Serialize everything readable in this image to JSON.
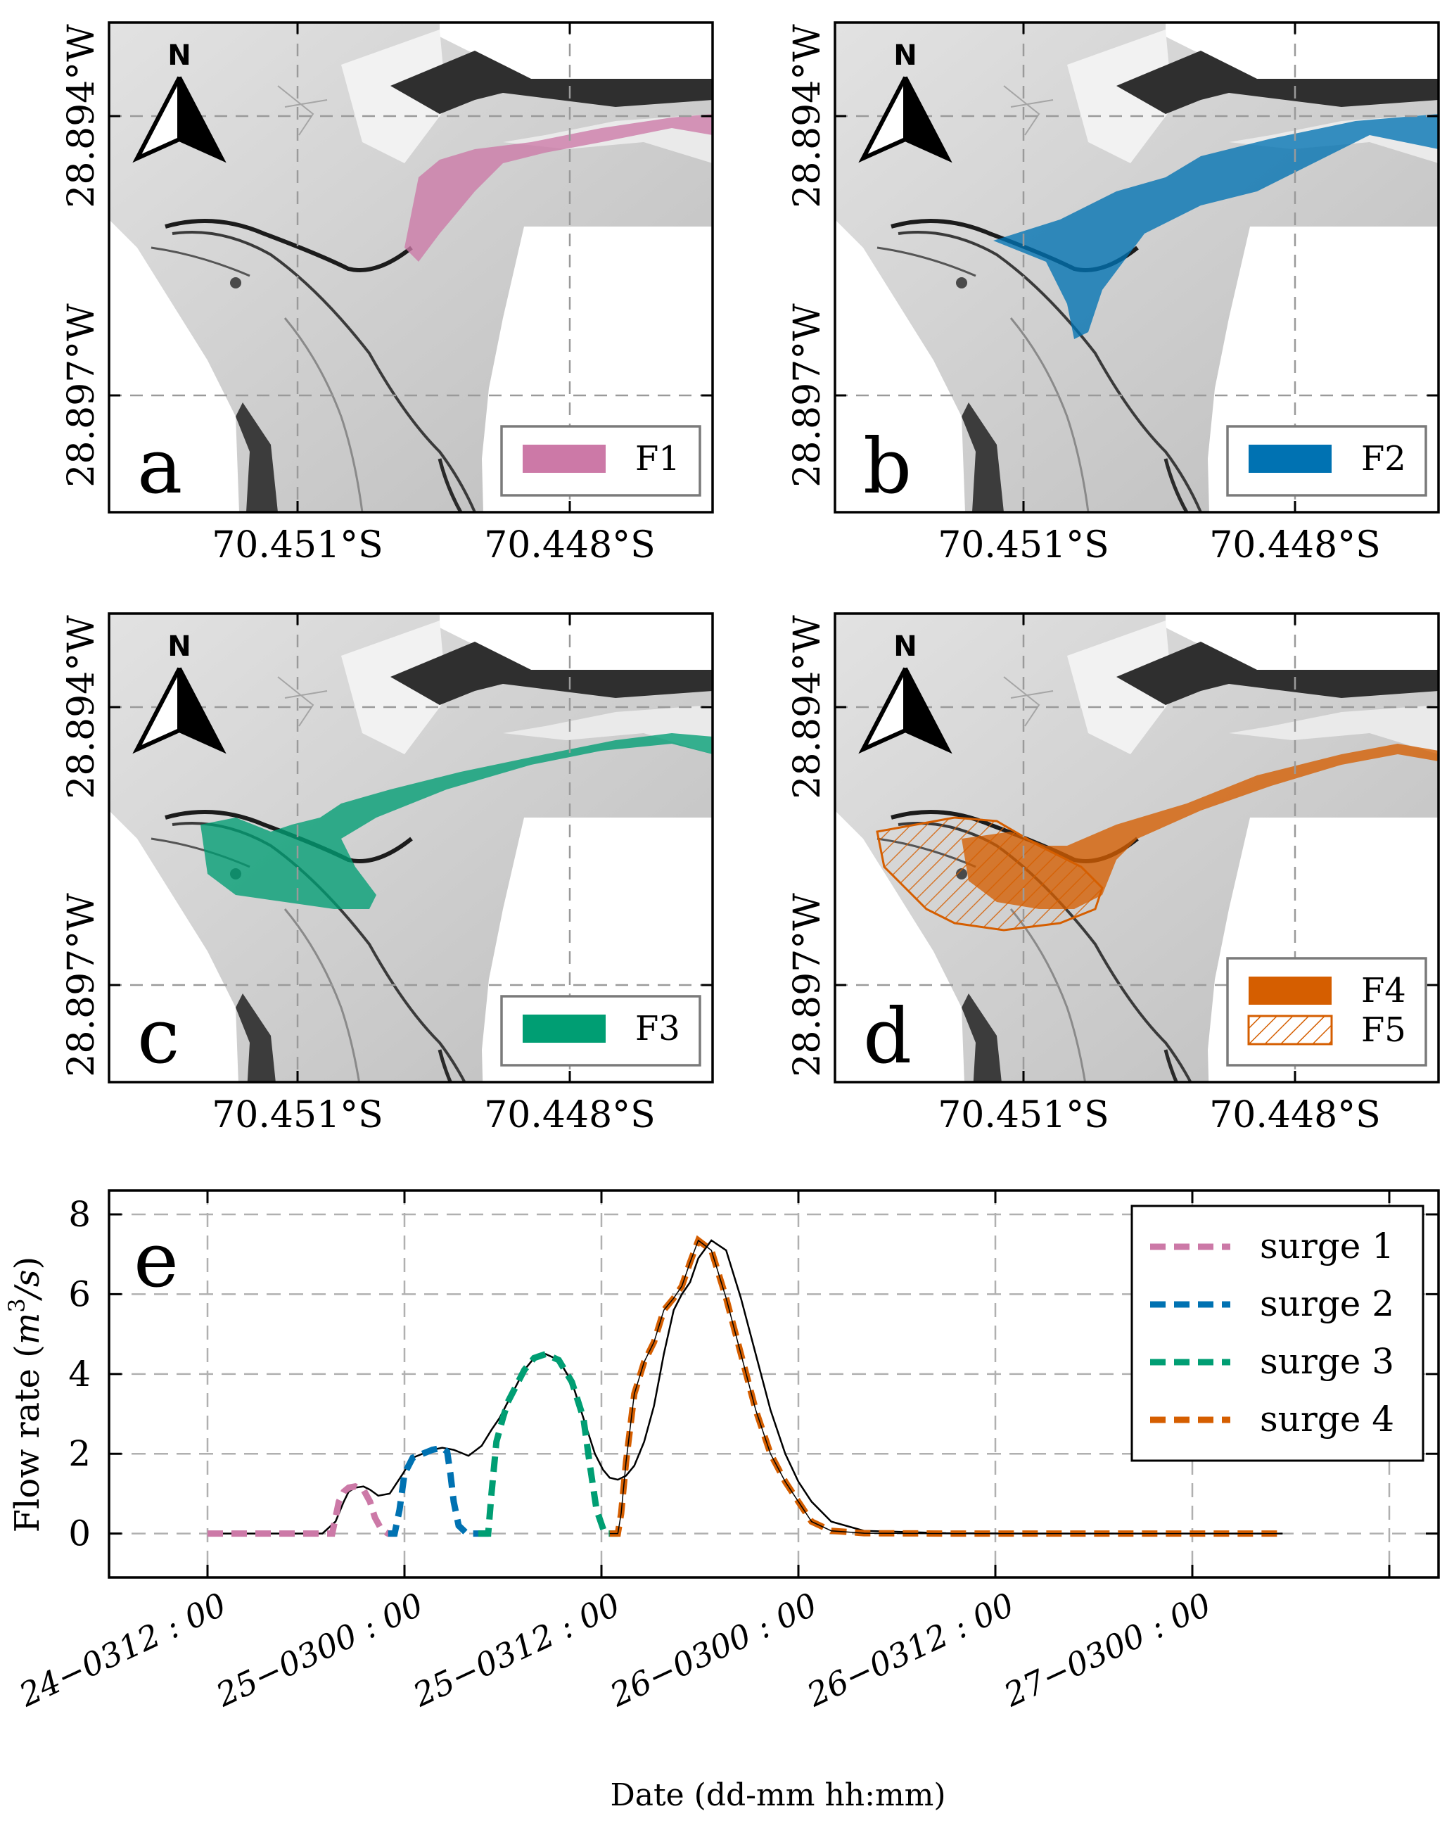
{
  "colors": {
    "f1": "#cc79a7",
    "f2": "#0072b2",
    "f3": "#009e73",
    "f4": "#d55e00",
    "total": "#000000",
    "grid": "#b0b0b0",
    "hillshade_light": "#ececec",
    "hillshade_mid": "#c8c8c8",
    "hillshade_dark": "#3a3a3a"
  },
  "maps": [
    {
      "panel_label": "a",
      "x_ticks": [
        "70.451°S",
        "70.448°S"
      ],
      "y_ticks": [
        "28.894°W",
        "28.897°W"
      ],
      "north_label": "N",
      "legend": [
        {
          "label": "F1",
          "color": "#cc79a7",
          "style": "solid"
        }
      ]
    },
    {
      "panel_label": "b",
      "x_ticks": [
        "70.451°S",
        "70.448°S"
      ],
      "y_ticks": [
        "28.894°W",
        "28.897°W"
      ],
      "north_label": "N",
      "legend": [
        {
          "label": "F2",
          "color": "#0072b2",
          "style": "solid"
        }
      ]
    },
    {
      "panel_label": "c",
      "x_ticks": [
        "70.451°S",
        "70.448°S"
      ],
      "y_ticks": [
        "28.894°W",
        "28.897°W"
      ],
      "north_label": "N",
      "legend": [
        {
          "label": "F3",
          "color": "#009e73",
          "style": "solid"
        }
      ]
    },
    {
      "panel_label": "d",
      "x_ticks": [
        "70.451°S",
        "70.448°S"
      ],
      "y_ticks": [
        "28.894°W",
        "28.897°W"
      ],
      "north_label": "N",
      "legend": [
        {
          "label": "F4",
          "color": "#d55e00",
          "style": "solid"
        },
        {
          "label": "F5",
          "color": "#d55e00",
          "style": "hatch"
        }
      ]
    }
  ],
  "chart_data": {
    "type": "line",
    "panel_label": "e",
    "title": "",
    "xlabel": "Date (dd-mm hh:mm)",
    "ylabel": "Flow rate (m³/s)",
    "ylabel_prefix": "Flow rate (",
    "ylabel_unit_base": "m",
    "ylabel_unit_exp": "3",
    "ylabel_unit_tail": "/s",
    "ylabel_suffix": ")",
    "xlim_hours": [
      -6,
      75
    ],
    "ylim": [
      -1.1,
      8.6
    ],
    "x_ticks_hours": [
      0,
      12,
      24,
      36,
      48,
      60,
      72
    ],
    "x_tick_labels": [
      "24−0312 : 00",
      "25−0300 : 00",
      "25−0312 : 00",
      "26−0300 : 00",
      "26−0312 : 00",
      "27−0300 : 00"
    ],
    "x_tick_label_hours": [
      0,
      12,
      24,
      36,
      48,
      60
    ],
    "y_ticks": [
      0,
      2,
      4,
      6,
      8
    ],
    "grid": true,
    "legend_position": "top-right",
    "series": [
      {
        "name": "total",
        "legend": false,
        "style": "solid-thin",
        "color": "#000000",
        "x": [
          0,
          7,
          7.8,
          8.3,
          8.6,
          9.0,
          9.5,
          9.9,
          10.4,
          11.1,
          11.9,
          12.5,
          13.1,
          13.7,
          14.3,
          15.0,
          15.9,
          16.7,
          17.3,
          17.8,
          18.3,
          18.8,
          19.3,
          19.9,
          20.6,
          21.4,
          22.2,
          22.9,
          23.6,
          24.1,
          24.5,
          25.0,
          25.5,
          26.0,
          26.6,
          27.2,
          27.8,
          28.4,
          28.9,
          29.4,
          29.9,
          30.7,
          31.6,
          32.5,
          33.4,
          34.3,
          35.2,
          36.0,
          36.8,
          38,
          40,
          45,
          50,
          60,
          65.5
        ],
        "y": [
          0,
          0,
          0.3,
          0.8,
          1.05,
          1.15,
          1.18,
          1.1,
          0.95,
          1.0,
          1.5,
          1.9,
          2.0,
          2.1,
          2.15,
          2.1,
          1.95,
          2.2,
          2.6,
          2.9,
          3.3,
          3.7,
          4.1,
          4.4,
          4.5,
          4.35,
          3.8,
          2.9,
          2.0,
          1.6,
          1.4,
          1.35,
          1.45,
          1.7,
          2.3,
          3.2,
          4.5,
          5.6,
          6.0,
          6.3,
          6.9,
          7.35,
          7.1,
          5.9,
          4.5,
          3.1,
          2.0,
          1.3,
          0.8,
          0.3,
          0.07,
          0.01,
          0,
          0,
          0
        ]
      },
      {
        "name": "surge 1",
        "legend": true,
        "style": "dashed",
        "color": "#cc79a7",
        "x": [
          0,
          7.6,
          7.8,
          8.0,
          8.3,
          8.6,
          9.0,
          9.5,
          9.9,
          10.2,
          10.6,
          11.0,
          11.5
        ],
        "y": [
          0,
          0,
          0.4,
          0.8,
          1.05,
          1.15,
          1.18,
          1.1,
          0.8,
          0.4,
          0.1,
          0,
          0
        ]
      },
      {
        "name": "surge 2",
        "legend": true,
        "style": "dashed",
        "color": "#0072b2",
        "x": [
          11.0,
          11.4,
          11.7,
          12.0,
          12.5,
          13.1,
          13.7,
          14.3,
          14.6,
          14.8,
          15.0,
          15.3,
          15.8,
          16.5,
          17.2
        ],
        "y": [
          0,
          0,
          0.6,
          1.5,
          1.9,
          2.0,
          2.1,
          2.15,
          2.05,
          1.5,
          0.8,
          0.2,
          0,
          0,
          0
        ]
      },
      {
        "name": "surge 3",
        "legend": true,
        "style": "dashed",
        "color": "#009e73",
        "x": [
          16.5,
          17.1,
          17.3,
          17.6,
          18.0,
          18.3,
          18.8,
          19.3,
          19.9,
          20.6,
          21.4,
          22.2,
          22.9,
          23.3,
          23.7,
          24.2,
          25.0
        ],
        "y": [
          0,
          0,
          1.0,
          2.3,
          2.9,
          3.3,
          3.7,
          4.1,
          4.4,
          4.5,
          4.35,
          3.8,
          2.9,
          1.7,
          0.6,
          0,
          0
        ]
      },
      {
        "name": "surge 4",
        "legend": true,
        "style": "dashed",
        "color": "#d55e00",
        "x": [
          24.5,
          25.0,
          25.2,
          25.5,
          26.0,
          26.6,
          27.2,
          27.8,
          28.4,
          28.9,
          29.4,
          29.9,
          30.7,
          31.6,
          32.5,
          33.4,
          34.3,
          35.2,
          36.0,
          36.8,
          38,
          40,
          45,
          50,
          55,
          60,
          65.5
        ],
        "y": [
          0,
          0,
          0.5,
          1.8,
          3.5,
          4.3,
          4.8,
          5.6,
          5.9,
          6.2,
          6.8,
          7.35,
          7.1,
          5.9,
          4.5,
          3.1,
          2.0,
          1.3,
          0.8,
          0.3,
          0.07,
          0.01,
          0,
          0,
          0,
          0,
          0
        ]
      }
    ]
  }
}
